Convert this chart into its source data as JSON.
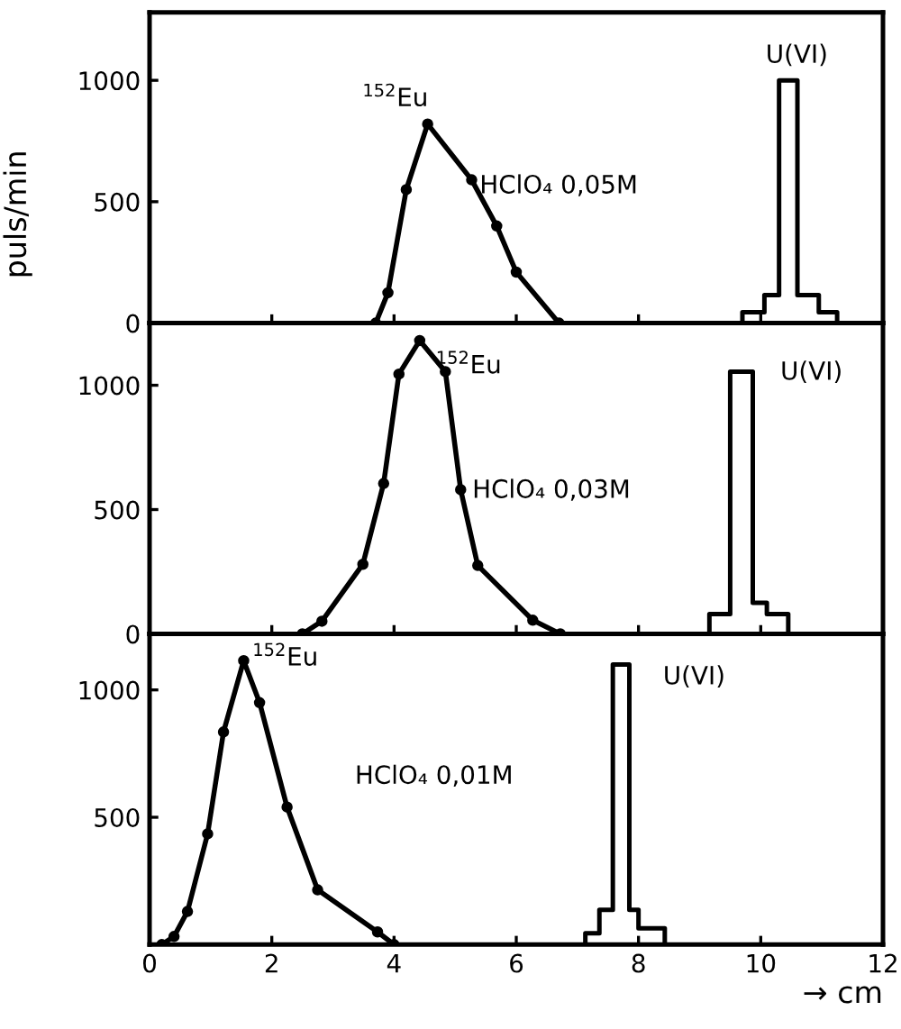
{
  "chart_data": [
    {
      "type": "line",
      "ylabel": "puls/min",
      "xlim": [
        0,
        12
      ],
      "xticks": [
        0,
        2,
        4,
        6,
        8,
        10,
        12
      ],
      "ylim": [
        0,
        1280
      ],
      "yticks": [
        0,
        500,
        1000
      ],
      "tick_labels": "y",
      "series": [
        {
          "color": "#000000",
          "marker": "circle",
          "x": [
            3.7,
            3.9,
            4.2,
            4.55,
            5.27,
            5.68,
            6.0,
            6.7
          ],
          "values": [
            0,
            125,
            550,
            820,
            590,
            400,
            210,
            0
          ]
        },
        {
          "type": "step",
          "color": "#000000",
          "x": [
            9.7,
            9.7,
            10.06,
            10.3,
            10.6,
            10.95,
            11.25
          ],
          "values": [
            0,
            45,
            115,
            1000,
            115,
            45,
            0
          ]
        }
      ],
      "annotations": [
        "$^{152}$Eu",
        "U(VI)",
        "HClO₄ 0,05M"
      ]
    },
    {
      "type": "line",
      "xlim": [
        0,
        12
      ],
      "xticks": [
        0,
        2,
        4,
        6,
        8,
        10,
        12
      ],
      "ylim": [
        0,
        1250
      ],
      "yticks": [
        0,
        500,
        1000
      ],
      "tick_labels": "y",
      "series": [
        {
          "color": "#000000",
          "marker": "circle",
          "x": [
            2.5,
            2.82,
            3.49,
            3.83,
            4.08,
            4.42,
            4.84,
            5.09,
            5.37,
            6.27,
            6.72
          ],
          "values": [
            0,
            51,
            280,
            605,
            1045,
            1180,
            1055,
            580,
            275,
            55,
            0
          ]
        },
        {
          "type": "step",
          "color": "#000000",
          "x": [
            9.16,
            9.16,
            9.5,
            9.87,
            10.1,
            10.45
          ],
          "values": [
            0,
            80,
            1055,
            125,
            80,
            0
          ]
        }
      ],
      "annotations": [
        "$^{152}$Eu",
        "U(VI)",
        "HClO₄ 0,03M"
      ]
    },
    {
      "type": "line",
      "xlabel": "→ cm",
      "xlim": [
        0,
        12
      ],
      "xticks": [
        0,
        2,
        4,
        6,
        8,
        10,
        12
      ],
      "ylim": [
        0,
        1220
      ],
      "yticks": [
        500,
        1000
      ],
      "series": [
        {
          "color": "#000000",
          "marker": "circle",
          "x": [
            0.2,
            0.4,
            0.62,
            0.95,
            1.21,
            1.54,
            1.8,
            2.25,
            2.75,
            3.73,
            4.0
          ],
          "values": [
            0,
            32,
            130,
            435,
            835,
            1115,
            950,
            540,
            215,
            50,
            0
          ]
        },
        {
          "type": "step",
          "color": "#000000",
          "x": [
            7.13,
            7.13,
            7.36,
            7.58,
            7.85,
            8.0,
            8.43
          ],
          "values": [
            0,
            45,
            137,
            1100,
            137,
            64,
            0
          ]
        }
      ],
      "annotations": [
        "$^{152}$Eu",
        "U(VI)",
        "HClO₄ 0,01M"
      ]
    }
  ]
}
